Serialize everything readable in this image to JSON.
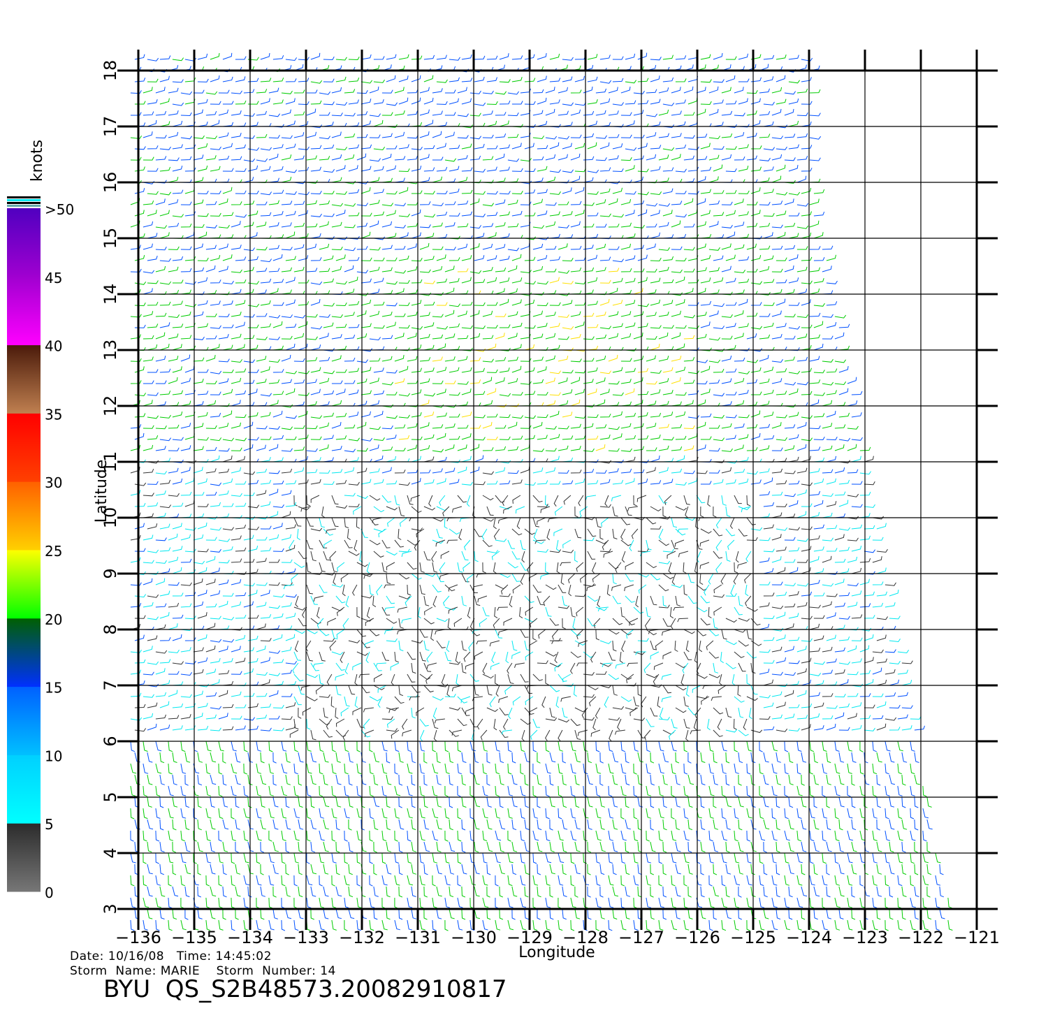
{
  "map": {
    "lon_ticks": [
      "-136",
      "-135",
      "-134",
      "-133",
      "-132",
      "-131",
      "-130",
      "-129",
      "-128",
      "-127",
      "-126",
      "-125",
      "-124",
      "-123",
      "-122",
      "-121"
    ],
    "lat_ticks": [
      "3",
      "4",
      "5",
      "6",
      "7",
      "8",
      "9",
      "10",
      "11",
      "12",
      "13",
      "14",
      "15",
      "16",
      "17",
      "18"
    ],
    "xlabel": "Longitude",
    "ylabel": "Latitude",
    "lon_range": [
      -136,
      -121
    ],
    "lat_range": [
      3,
      18
    ]
  },
  "colorbar": {
    "unit": "knots",
    "labels": [
      "0",
      "5",
      "10",
      "15",
      "20",
      "25",
      "30",
      "35",
      "40",
      "45",
      ">50"
    ],
    "colors": {
      "calm": "#777777",
      "light": "#00e8f0",
      "moderate": "#0050ff",
      "fresh": "#00cc00",
      "strong": "#ffe000",
      "gale": "#ff7000",
      "storm": "#ff1010",
      "violent": "#7a4020",
      "hurricane": "#a000c8"
    }
  },
  "info": {
    "date_time": "Date: 10/16/08   Time: 14:45:02",
    "storm": "Storm  Name: MARIE    Storm  Number: 14",
    "file_id": "BYU  QS_S2B48573.20082910817"
  }
}
